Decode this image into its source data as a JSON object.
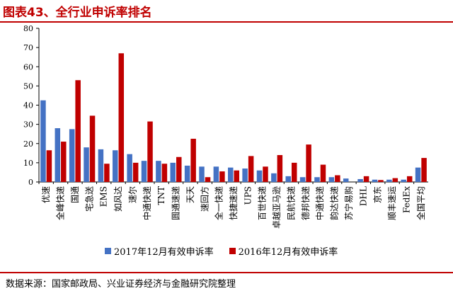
{
  "header": {
    "title": "图表43、全行业申诉率排名"
  },
  "footer": {
    "source": "数据来源：国家邮政局、兴业证券经济与金融研究院整理"
  },
  "colors": {
    "series2017": "#4472c4",
    "series2016": "#c00000",
    "accent": "#c00000"
  },
  "chart_data": {
    "type": "bar",
    "title": "",
    "xlabel": "",
    "ylabel": "",
    "ylim": [
      0,
      80
    ],
    "yticks": [
      0,
      10,
      20,
      30,
      40,
      50,
      60,
      70,
      80
    ],
    "grid": false,
    "legend_position": "bottom",
    "categories": [
      "优速",
      "全峰快递",
      "国通",
      "宅急送",
      "EMS",
      "如风达",
      "速尔",
      "中通快递",
      "TNT",
      "圆通速递",
      "天天",
      "速回方",
      "全一快递",
      "快捷速递",
      "UPS",
      "百世快递",
      "卓越亚马逊",
      "民航快递",
      "德邦快递",
      "中通快递",
      "韵达快递",
      "苏宁易购",
      "DHL",
      "京东",
      "顺丰速运",
      "FedEx",
      "全国平均"
    ],
    "series": [
      {
        "name": "2017年12月有效申诉率",
        "values": [
          42.5,
          28,
          27.5,
          18,
          17,
          16.5,
          14.5,
          11,
          11,
          10,
          8.5,
          8,
          8,
          7.5,
          7,
          6,
          4.5,
          3,
          2.5,
          2.5,
          2.5,
          1.8,
          1.5,
          1.2,
          1.2,
          1.2,
          7.5
        ]
      },
      {
        "name": "2016年12月有效申诉率",
        "values": [
          16.5,
          21,
          53,
          34.5,
          9.5,
          67,
          10,
          31.5,
          9.5,
          13,
          22.5,
          2.5,
          5.5,
          6,
          13.5,
          8,
          14,
          10,
          19.5,
          9,
          3.5,
          null,
          3,
          1,
          2,
          3,
          12.5
        ]
      }
    ]
  }
}
